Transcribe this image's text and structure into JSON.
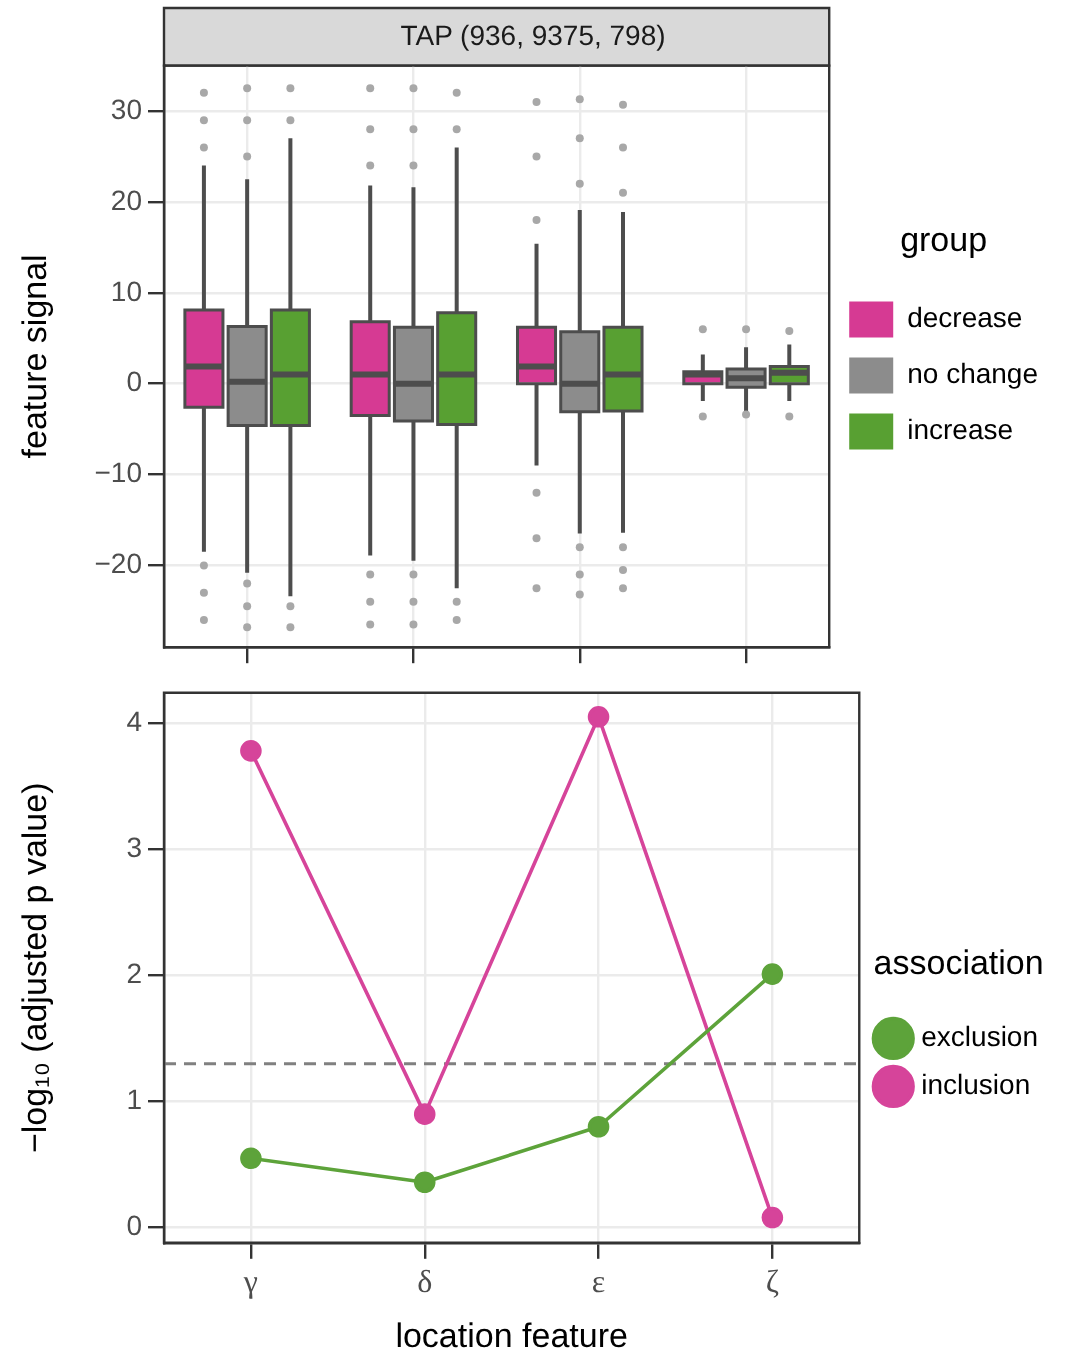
{
  "chart_data": [
    {
      "type": "box",
      "title": "TAP (936, 9375, 798)",
      "ylabel": "feature signal",
      "legend_title": "group",
      "legend": "right",
      "grid": true,
      "tick_labels": "y",
      "categories": [
        null,
        null,
        null,
        null
      ],
      "ylim": [
        -29,
        35
      ],
      "yticks": [
        {
          "value": -20,
          "label": "−20"
        },
        {
          "value": -10,
          "label": "−10"
        },
        0,
        10,
        20,
        30
      ],
      "series": [
        {
          "name": "decrease",
          "color": "#d63a93",
          "boxes": [
            {
              "low": -18.5,
              "q1": -2.6,
              "median": 1.9,
              "q3": 8.1,
              "high": 24,
              "outliers": [
                -20,
                -23,
                -26,
                26,
                29,
                32
              ]
            },
            {
              "low": -18.9,
              "q1": -3.5,
              "median": 1.0,
              "q3": 6.8,
              "high": 21.8,
              "outliers": [
                -21,
                -24,
                -26.5,
                24,
                28,
                32.5
              ]
            },
            {
              "low": -9,
              "q1": 0,
              "median": 1.9,
              "q3": 6.2,
              "high": 15.4,
              "outliers": [
                -12,
                -17,
                -22.5,
                18,
                25,
                31
              ]
            },
            {
              "low": -1.9,
              "q1": 0,
              "median": 1.0,
              "q3": 1.3,
              "high": 3.2,
              "outliers": [
                -3.6,
                6
              ]
            }
          ]
        },
        {
          "name": "no change",
          "color": "#8c8c8c",
          "boxes": [
            {
              "low": -20.8,
              "q1": -4.6,
              "median": 0.2,
              "q3": 6.3,
              "high": 22.5,
              "outliers": [
                -22,
                -24.5,
                -26.8,
                25,
                29,
                32.5
              ]
            },
            {
              "low": -19.5,
              "q1": -4.1,
              "median": 0,
              "q3": 6.2,
              "high": 21.6,
              "outliers": [
                -21,
                -24,
                -26.5,
                24,
                28,
                32.5
              ]
            },
            {
              "low": -16.5,
              "q1": -3.1,
              "median": 0,
              "q3": 5.7,
              "high": 19.1,
              "outliers": [
                -18,
                -21,
                -23.2,
                22,
                27,
                31.3
              ]
            },
            {
              "low": -3,
              "q1": -0.4,
              "median": 0.6,
              "q3": 1.6,
              "high": 4,
              "outliers": [
                -3.4,
                6
              ]
            }
          ]
        },
        {
          "name": "increase",
          "color": "#58a032",
          "boxes": [
            {
              "low": -23.4,
              "q1": -4.6,
              "median": 1.0,
              "q3": 8.1,
              "high": 27,
              "outliers": [
                -24.5,
                -26.8,
                29,
                32.5
              ]
            },
            {
              "low": -22.5,
              "q1": -4.5,
              "median": 1.0,
              "q3": 7.8,
              "high": 26,
              "outliers": [
                -24,
                -26,
                28,
                32
              ]
            },
            {
              "low": -16.4,
              "q1": -3.0,
              "median": 1.0,
              "q3": 6.2,
              "high": 18.9,
              "outliers": [
                -18,
                -20.5,
                -22.5,
                21,
                26,
                30.7
              ]
            },
            {
              "low": -1.9,
              "q1": 0,
              "median": 1.2,
              "q3": 1.9,
              "high": 4.3,
              "outliers": [
                -3.6,
                5.8
              ]
            }
          ]
        }
      ]
    },
    {
      "type": "line",
      "xlabel": "location feature",
      "ylabel": "−log₁₀ (adjusted p value)",
      "legend_title": "association",
      "legend": "right",
      "grid": true,
      "marker": "circle",
      "categories": [
        "γ",
        "δ",
        "ε",
        "ζ"
      ],
      "ylim": [
        -0.12,
        4.24
      ],
      "yticks": [
        0,
        1,
        2,
        3,
        4
      ],
      "ref_lines": [
        {
          "axis": "y",
          "value": 1.3,
          "color": "#808080",
          "line_style": "dashed"
        }
      ],
      "series": [
        {
          "name": "exclusion",
          "color": "#5da33a",
          "values": [
            0.55,
            0.36,
            0.8,
            2.01
          ]
        },
        {
          "name": "inclusion",
          "color": "#d6449a",
          "values": [
            3.78,
            0.9,
            4.05,
            0.08
          ]
        }
      ]
    }
  ]
}
